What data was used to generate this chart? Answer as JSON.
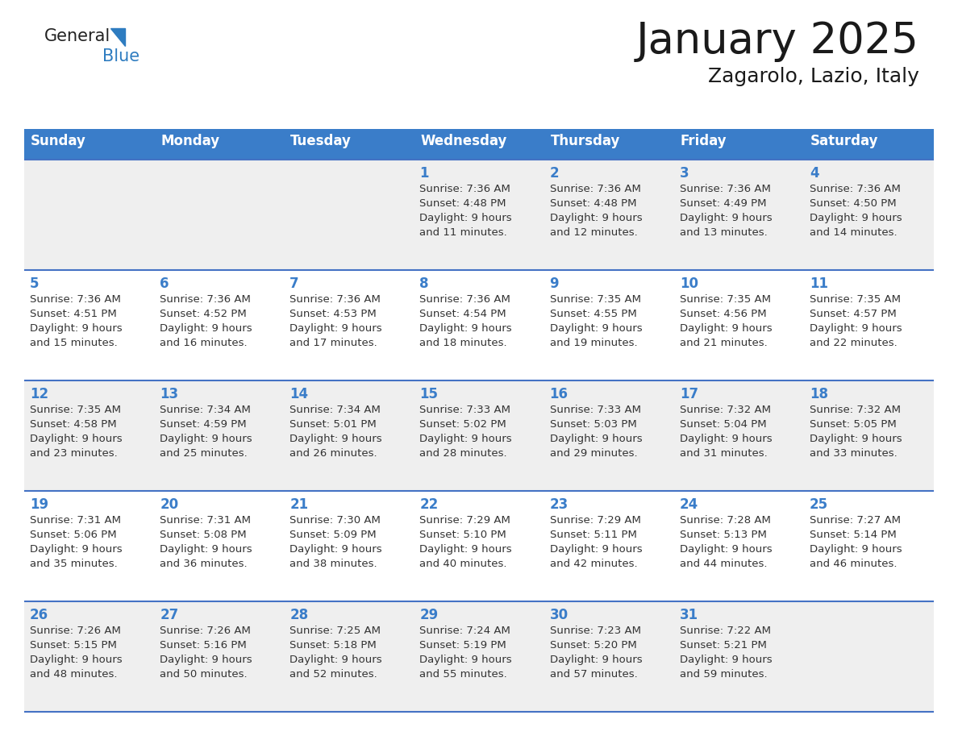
{
  "title": "January 2025",
  "subtitle": "Zagarolo, Lazio, Italy",
  "days_of_week": [
    "Sunday",
    "Monday",
    "Tuesday",
    "Wednesday",
    "Thursday",
    "Friday",
    "Saturday"
  ],
  "header_bg": "#3A7DC9",
  "header_text": "#FFFFFF",
  "row_bg_odd": "#EFEFEF",
  "row_bg_even": "#FFFFFF",
  "day_num_color": "#3A7DC9",
  "text_color": "#333333",
  "line_color": "#4472C4",
  "logo_general_color": "#222222",
  "logo_blue_color": "#2E7CC0",
  "calendar_data": [
    {
      "day": 1,
      "col": 3,
      "row": 0,
      "sunrise": "7:36 AM",
      "sunset": "4:48 PM",
      "daylight_hours": 9,
      "daylight_minutes": 11
    },
    {
      "day": 2,
      "col": 4,
      "row": 0,
      "sunrise": "7:36 AM",
      "sunset": "4:48 PM",
      "daylight_hours": 9,
      "daylight_minutes": 12
    },
    {
      "day": 3,
      "col": 5,
      "row": 0,
      "sunrise": "7:36 AM",
      "sunset": "4:49 PM",
      "daylight_hours": 9,
      "daylight_minutes": 13
    },
    {
      "day": 4,
      "col": 6,
      "row": 0,
      "sunrise": "7:36 AM",
      "sunset": "4:50 PM",
      "daylight_hours": 9,
      "daylight_minutes": 14
    },
    {
      "day": 5,
      "col": 0,
      "row": 1,
      "sunrise": "7:36 AM",
      "sunset": "4:51 PM",
      "daylight_hours": 9,
      "daylight_minutes": 15
    },
    {
      "day": 6,
      "col": 1,
      "row": 1,
      "sunrise": "7:36 AM",
      "sunset": "4:52 PM",
      "daylight_hours": 9,
      "daylight_minutes": 16
    },
    {
      "day": 7,
      "col": 2,
      "row": 1,
      "sunrise": "7:36 AM",
      "sunset": "4:53 PM",
      "daylight_hours": 9,
      "daylight_minutes": 17
    },
    {
      "day": 8,
      "col": 3,
      "row": 1,
      "sunrise": "7:36 AM",
      "sunset": "4:54 PM",
      "daylight_hours": 9,
      "daylight_minutes": 18
    },
    {
      "day": 9,
      "col": 4,
      "row": 1,
      "sunrise": "7:35 AM",
      "sunset": "4:55 PM",
      "daylight_hours": 9,
      "daylight_minutes": 19
    },
    {
      "day": 10,
      "col": 5,
      "row": 1,
      "sunrise": "7:35 AM",
      "sunset": "4:56 PM",
      "daylight_hours": 9,
      "daylight_minutes": 21
    },
    {
      "day": 11,
      "col": 6,
      "row": 1,
      "sunrise": "7:35 AM",
      "sunset": "4:57 PM",
      "daylight_hours": 9,
      "daylight_minutes": 22
    },
    {
      "day": 12,
      "col": 0,
      "row": 2,
      "sunrise": "7:35 AM",
      "sunset": "4:58 PM",
      "daylight_hours": 9,
      "daylight_minutes": 23
    },
    {
      "day": 13,
      "col": 1,
      "row": 2,
      "sunrise": "7:34 AM",
      "sunset": "4:59 PM",
      "daylight_hours": 9,
      "daylight_minutes": 25
    },
    {
      "day": 14,
      "col": 2,
      "row": 2,
      "sunrise": "7:34 AM",
      "sunset": "5:01 PM",
      "daylight_hours": 9,
      "daylight_minutes": 26
    },
    {
      "day": 15,
      "col": 3,
      "row": 2,
      "sunrise": "7:33 AM",
      "sunset": "5:02 PM",
      "daylight_hours": 9,
      "daylight_minutes": 28
    },
    {
      "day": 16,
      "col": 4,
      "row": 2,
      "sunrise": "7:33 AM",
      "sunset": "5:03 PM",
      "daylight_hours": 9,
      "daylight_minutes": 29
    },
    {
      "day": 17,
      "col": 5,
      "row": 2,
      "sunrise": "7:32 AM",
      "sunset": "5:04 PM",
      "daylight_hours": 9,
      "daylight_minutes": 31
    },
    {
      "day": 18,
      "col": 6,
      "row": 2,
      "sunrise": "7:32 AM",
      "sunset": "5:05 PM",
      "daylight_hours": 9,
      "daylight_minutes": 33
    },
    {
      "day": 19,
      "col": 0,
      "row": 3,
      "sunrise": "7:31 AM",
      "sunset": "5:06 PM",
      "daylight_hours": 9,
      "daylight_minutes": 35
    },
    {
      "day": 20,
      "col": 1,
      "row": 3,
      "sunrise": "7:31 AM",
      "sunset": "5:08 PM",
      "daylight_hours": 9,
      "daylight_minutes": 36
    },
    {
      "day": 21,
      "col": 2,
      "row": 3,
      "sunrise": "7:30 AM",
      "sunset": "5:09 PM",
      "daylight_hours": 9,
      "daylight_minutes": 38
    },
    {
      "day": 22,
      "col": 3,
      "row": 3,
      "sunrise": "7:29 AM",
      "sunset": "5:10 PM",
      "daylight_hours": 9,
      "daylight_minutes": 40
    },
    {
      "day": 23,
      "col": 4,
      "row": 3,
      "sunrise": "7:29 AM",
      "sunset": "5:11 PM",
      "daylight_hours": 9,
      "daylight_minutes": 42
    },
    {
      "day": 24,
      "col": 5,
      "row": 3,
      "sunrise": "7:28 AM",
      "sunset": "5:13 PM",
      "daylight_hours": 9,
      "daylight_minutes": 44
    },
    {
      "day": 25,
      "col": 6,
      "row": 3,
      "sunrise": "7:27 AM",
      "sunset": "5:14 PM",
      "daylight_hours": 9,
      "daylight_minutes": 46
    },
    {
      "day": 26,
      "col": 0,
      "row": 4,
      "sunrise": "7:26 AM",
      "sunset": "5:15 PM",
      "daylight_hours": 9,
      "daylight_minutes": 48
    },
    {
      "day": 27,
      "col": 1,
      "row": 4,
      "sunrise": "7:26 AM",
      "sunset": "5:16 PM",
      "daylight_hours": 9,
      "daylight_minutes": 50
    },
    {
      "day": 28,
      "col": 2,
      "row": 4,
      "sunrise": "7:25 AM",
      "sunset": "5:18 PM",
      "daylight_hours": 9,
      "daylight_minutes": 52
    },
    {
      "day": 29,
      "col": 3,
      "row": 4,
      "sunrise": "7:24 AM",
      "sunset": "5:19 PM",
      "daylight_hours": 9,
      "daylight_minutes": 55
    },
    {
      "day": 30,
      "col": 4,
      "row": 4,
      "sunrise": "7:23 AM",
      "sunset": "5:20 PM",
      "daylight_hours": 9,
      "daylight_minutes": 57
    },
    {
      "day": 31,
      "col": 5,
      "row": 4,
      "sunrise": "7:22 AM",
      "sunset": "5:21 PM",
      "daylight_hours": 9,
      "daylight_minutes": 59
    }
  ]
}
